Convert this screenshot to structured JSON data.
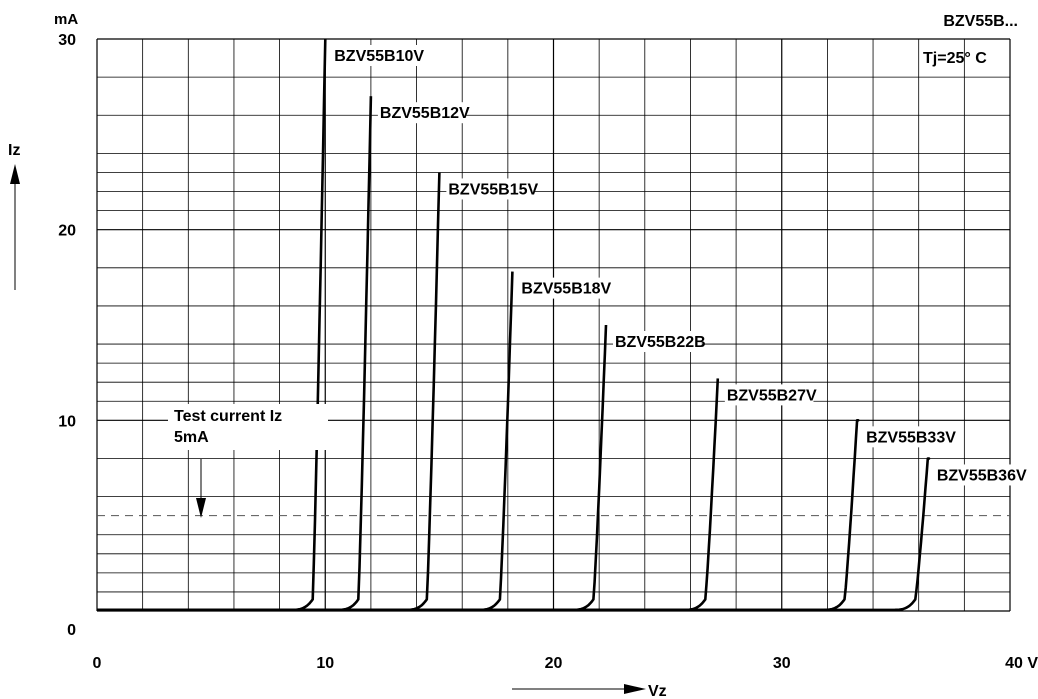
{
  "chart_data": {
    "type": "line",
    "title": "BZV55B...",
    "annotation_tj": "Tj=25° C",
    "xlabel": "Vz",
    "ylabel": "Iz",
    "y_unit": "mA",
    "x_unit": "V",
    "xlim": [
      0,
      40
    ],
    "ylim": [
      0,
      30
    ],
    "x_ticks": [
      "0",
      "10",
      "20",
      "30",
      "40 V"
    ],
    "y_ticks": [
      "0",
      "10",
      "20",
      "30"
    ],
    "grid": true,
    "test_current": {
      "label_line1": "Test current Iz",
      "label_line2": "5mA",
      "value": 5
    },
    "series": [
      {
        "name": "BZV55B10V",
        "vz": 9.8,
        "imax": 30
      },
      {
        "name": "BZV55B12V",
        "vz": 11.8,
        "imax": 27
      },
      {
        "name": "BZV55B15V",
        "vz": 14.8,
        "imax": 23
      },
      {
        "name": "BZV55B18V",
        "vz": 18.0,
        "imax": 17.8
      },
      {
        "name": "BZV55B22B",
        "vz": 22.1,
        "imax": 15
      },
      {
        "name": "BZV55B27V",
        "vz": 27.0,
        "imax": 12.2
      },
      {
        "name": "BZV55B33V",
        "vz": 33.1,
        "imax": 10
      },
      {
        "name": "BZV55B36V",
        "vz": 36.2,
        "imax": 8
      }
    ]
  }
}
